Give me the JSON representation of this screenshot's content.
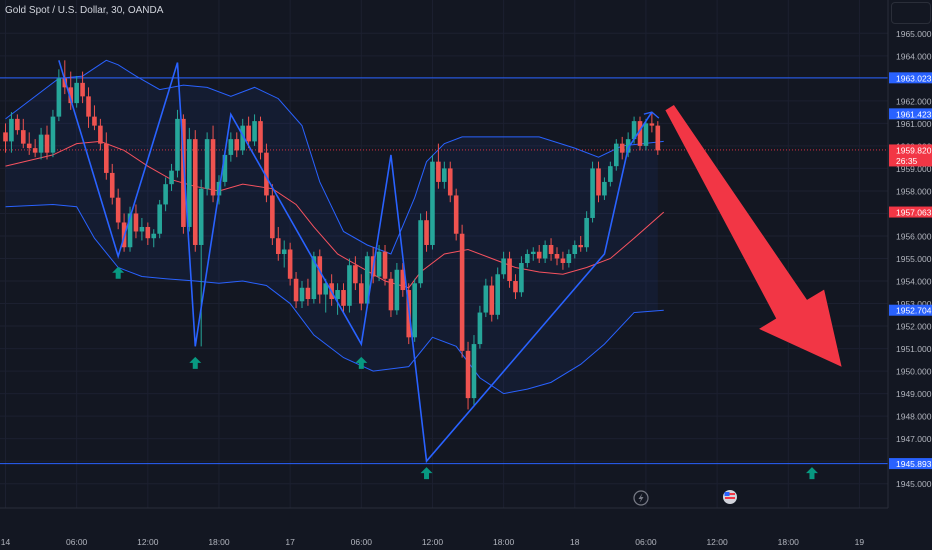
{
  "title": "Gold Spot / U.S. Dollar, 30, OANDA",
  "colors": {
    "background": "#131722",
    "bull": "#26a69a",
    "bear": "#ef5350",
    "band": "#2962ff",
    "ma": "#f7525f",
    "zigzag": "#2962ff",
    "level": "#2962ff",
    "signal": "#089981",
    "arrow": "#f23645"
  },
  "chart_data": {
    "type": "candlestick",
    "symbol": "Gold Spot / U.S. Dollar",
    "timeframe": "30",
    "source": "OANDA",
    "ylim": [
      1944.6,
      1965.6
    ],
    "y_ticks": [
      "1945.000",
      "1946.000",
      "1947.000",
      "1948.000",
      "1949.000",
      "1950.000",
      "1951.000",
      "1952.000",
      "1953.000",
      "1954.000",
      "1955.000",
      "1956.000",
      "1957.000",
      "1958.000",
      "1959.000",
      "1960.000",
      "1961.000",
      "1962.000",
      "1963.000",
      "1964.000",
      "1965.000"
    ],
    "x_ticks": [
      "14",
      "06:00",
      "12:00",
      "18:00",
      "17",
      "06:00",
      "12:00",
      "18:00",
      "18",
      "06:00",
      "12:00",
      "18:00",
      "19"
    ],
    "x_tick_bar_index": [
      0,
      12,
      24,
      36,
      48,
      60,
      72,
      84,
      96,
      108,
      120,
      132,
      144
    ],
    "price_labels": [
      {
        "text": "1963.023",
        "value": 1963.023,
        "color": "#2962ff"
      },
      {
        "text": "1961.423",
        "value": 1961.423,
        "color": "#2962ff"
      },
      {
        "text": "1959.820",
        "value": 1959.82,
        "sub": "26:35",
        "color": "#f23645"
      },
      {
        "text": "1957.063",
        "value": 1957.063,
        "color": "#f23645"
      },
      {
        "text": "1952.704",
        "value": 1952.704,
        "color": "#2962ff"
      },
      {
        "text": "1945.893",
        "value": 1945.893,
        "color": "#2962ff"
      }
    ],
    "horizontal_levels": [
      1963.023,
      1945.893
    ],
    "last_price_line": 1959.82,
    "candles": [
      [
        1960.6,
        1961.0,
        1959.7,
        1960.2
      ],
      [
        1960.2,
        1961.5,
        1959.7,
        1961.2
      ],
      [
        1961.2,
        1961.4,
        1960.5,
        1960.7
      ],
      [
        1960.7,
        1961.2,
        1959.9,
        1960.1
      ],
      [
        1960.1,
        1960.6,
        1959.6,
        1959.9
      ],
      [
        1959.9,
        1960.3,
        1959.5,
        1959.7
      ],
      [
        1959.7,
        1960.8,
        1959.4,
        1960.5
      ],
      [
        1960.5,
        1960.9,
        1959.4,
        1959.7
      ],
      [
        1959.7,
        1961.6,
        1959.5,
        1961.3
      ],
      [
        1961.3,
        1963.4,
        1961.1,
        1963.0
      ],
      [
        1963.0,
        1963.8,
        1962.3,
        1962.6
      ],
      [
        1962.6,
        1963.3,
        1961.6,
        1961.9
      ],
      [
        1961.9,
        1963.1,
        1961.7,
        1962.8
      ],
      [
        1962.8,
        1963.3,
        1961.9,
        1962.2
      ],
      [
        1962.2,
        1962.6,
        1960.8,
        1961.3
      ],
      [
        1961.3,
        1961.8,
        1960.7,
        1960.9
      ],
      [
        1960.9,
        1961.2,
        1959.8,
        1960.1
      ],
      [
        1960.1,
        1960.6,
        1958.5,
        1958.8
      ],
      [
        1958.8,
        1959.2,
        1957.4,
        1957.7
      ],
      [
        1957.7,
        1958.1,
        1956.3,
        1956.6
      ],
      [
        1956.6,
        1957.0,
        1955.3,
        1955.5
      ],
      [
        1955.5,
        1957.3,
        1955.3,
        1957.0
      ],
      [
        1957.0,
        1957.4,
        1955.9,
        1956.2
      ],
      [
        1956.2,
        1956.8,
        1955.8,
        1956.4
      ],
      [
        1956.4,
        1956.6,
        1955.6,
        1955.9
      ],
      [
        1955.9,
        1956.3,
        1955.5,
        1956.1
      ],
      [
        1956.1,
        1957.6,
        1955.9,
        1957.4
      ],
      [
        1957.4,
        1958.6,
        1957.1,
        1958.3
      ],
      [
        1958.3,
        1959.2,
        1958.0,
        1958.9
      ],
      [
        1958.9,
        1961.6,
        1958.6,
        1961.2
      ],
      [
        1961.2,
        1961.4,
        1956.1,
        1956.4
      ],
      [
        1956.4,
        1960.8,
        1956.2,
        1960.3
      ],
      [
        1960.3,
        1960.7,
        1955.3,
        1955.6
      ],
      [
        1955.6,
        1958.5,
        1951.1,
        1958.1
      ],
      [
        1958.1,
        1960.6,
        1957.8,
        1960.3
      ],
      [
        1960.3,
        1960.9,
        1957.5,
        1957.8
      ],
      [
        1957.8,
        1958.7,
        1957.4,
        1958.4
      ],
      [
        1958.4,
        1959.8,
        1958.2,
        1959.6
      ],
      [
        1959.6,
        1960.6,
        1959.3,
        1960.3
      ],
      [
        1960.3,
        1960.6,
        1959.5,
        1959.8
      ],
      [
        1959.8,
        1961.2,
        1959.6,
        1960.9
      ],
      [
        1960.9,
        1961.3,
        1959.9,
        1960.2
      ],
      [
        1960.2,
        1961.4,
        1960.0,
        1961.1
      ],
      [
        1961.1,
        1961.3,
        1959.4,
        1959.7
      ],
      [
        1959.7,
        1960.1,
        1957.5,
        1957.8
      ],
      [
        1957.8,
        1958.3,
        1955.6,
        1955.9
      ],
      [
        1955.9,
        1956.4,
        1954.9,
        1955.2
      ],
      [
        1955.2,
        1955.8,
        1954.6,
        1955.4
      ],
      [
        1955.4,
        1955.7,
        1953.8,
        1954.1
      ],
      [
        1954.1,
        1954.4,
        1952.8,
        1953.1
      ],
      [
        1953.1,
        1954.0,
        1952.8,
        1953.7
      ],
      [
        1953.7,
        1954.1,
        1952.9,
        1953.2
      ],
      [
        1953.2,
        1955.3,
        1953.0,
        1955.1
      ],
      [
        1955.1,
        1955.4,
        1953.0,
        1953.4
      ],
      [
        1953.4,
        1954.1,
        1952.6,
        1953.9
      ],
      [
        1953.9,
        1954.3,
        1952.9,
        1953.2
      ],
      [
        1953.2,
        1953.9,
        1952.5,
        1953.6
      ],
      [
        1953.6,
        1953.9,
        1952.6,
        1952.9
      ],
      [
        1952.9,
        1955.0,
        1952.6,
        1954.7
      ],
      [
        1954.7,
        1955.1,
        1953.6,
        1953.9
      ],
      [
        1953.9,
        1954.3,
        1952.7,
        1953.0
      ],
      [
        1953.0,
        1955.3,
        1952.8,
        1955.1
      ],
      [
        1955.1,
        1955.5,
        1953.9,
        1954.2
      ],
      [
        1954.2,
        1955.6,
        1954.0,
        1955.3
      ],
      [
        1955.3,
        1955.6,
        1953.8,
        1954.1
      ],
      [
        1954.1,
        1954.4,
        1952.4,
        1952.7
      ],
      [
        1952.7,
        1954.8,
        1952.5,
        1954.5
      ],
      [
        1954.5,
        1954.8,
        1953.3,
        1953.6
      ],
      [
        1953.6,
        1953.9,
        1951.2,
        1951.5
      ],
      [
        1951.5,
        1954.1,
        1951.3,
        1953.9
      ],
      [
        1953.9,
        1957.0,
        1953.7,
        1956.7
      ],
      [
        1956.7,
        1957.1,
        1955.3,
        1955.6
      ],
      [
        1955.6,
        1959.6,
        1955.4,
        1959.3
      ],
      [
        1959.3,
        1960.1,
        1958.1,
        1958.4
      ],
      [
        1958.4,
        1959.3,
        1958.1,
        1959.0
      ],
      [
        1959.0,
        1959.3,
        1957.5,
        1957.8
      ],
      [
        1957.8,
        1958.1,
        1955.8,
        1956.1
      ],
      [
        1956.1,
        1956.5,
        1950.6,
        1950.9
      ],
      [
        1950.9,
        1951.3,
        1948.3,
        1948.8
      ],
      [
        1948.8,
        1951.6,
        1948.5,
        1951.2
      ],
      [
        1951.2,
        1952.9,
        1951.0,
        1952.6
      ],
      [
        1952.6,
        1954.1,
        1952.4,
        1953.8
      ],
      [
        1953.8,
        1954.2,
        1952.2,
        1952.5
      ],
      [
        1952.5,
        1954.6,
        1952.3,
        1954.3
      ],
      [
        1954.3,
        1955.3,
        1954.1,
        1955.0
      ],
      [
        1955.0,
        1955.3,
        1953.7,
        1954.0
      ],
      [
        1954.0,
        1954.3,
        1953.2,
        1953.5
      ],
      [
        1953.5,
        1955.1,
        1953.3,
        1954.8
      ],
      [
        1954.8,
        1955.4,
        1954.6,
        1955.2
      ],
      [
        1955.2,
        1955.5,
        1954.9,
        1955.3
      ],
      [
        1955.3,
        1955.6,
        1954.8,
        1955.0
      ],
      [
        1955.0,
        1955.8,
        1954.8,
        1955.6
      ],
      [
        1955.6,
        1955.9,
        1954.9,
        1955.2
      ],
      [
        1955.2,
        1955.5,
        1954.7,
        1955.0
      ],
      [
        1955.0,
        1955.3,
        1954.5,
        1954.8
      ],
      [
        1954.8,
        1955.4,
        1954.6,
        1955.2
      ],
      [
        1955.2,
        1955.8,
        1955.0,
        1955.6
      ],
      [
        1955.6,
        1956.0,
        1955.3,
        1955.5
      ],
      [
        1955.5,
        1957.1,
        1955.3,
        1956.8
      ],
      [
        1956.8,
        1959.3,
        1956.6,
        1959.0
      ],
      [
        1959.0,
        1959.3,
        1957.5,
        1957.8
      ],
      [
        1957.8,
        1958.6,
        1957.6,
        1958.4
      ],
      [
        1958.4,
        1959.3,
        1958.2,
        1959.1
      ],
      [
        1959.1,
        1960.3,
        1958.9,
        1960.1
      ],
      [
        1960.1,
        1960.4,
        1959.4,
        1959.7
      ],
      [
        1959.7,
        1960.6,
        1959.5,
        1960.3
      ],
      [
        1960.3,
        1961.3,
        1960.1,
        1961.1
      ],
      [
        1961.1,
        1961.3,
        1959.8,
        1960.0
      ],
      [
        1960.0,
        1961.2,
        1959.8,
        1961.0
      ],
      [
        1961.0,
        1961.5,
        1960.6,
        1960.9
      ],
      [
        1960.9,
        1961.1,
        1959.6,
        1959.8
      ]
    ],
    "bollinger": {
      "upper": [
        [
          0,
          1961.2
        ],
        [
          9,
          1963.0
        ],
        [
          13,
          1963.1
        ],
        [
          17,
          1963.8
        ],
        [
          19,
          1963.6
        ],
        [
          22,
          1963.1
        ],
        [
          26,
          1962.5
        ],
        [
          30,
          1962.7
        ],
        [
          34,
          1962.6
        ],
        [
          38,
          1962.2
        ],
        [
          42,
          1962.6
        ],
        [
          46,
          1962.1
        ],
        [
          50,
          1960.9
        ],
        [
          53,
          1958.4
        ],
        [
          57,
          1956.2
        ],
        [
          61,
          1955.6
        ],
        [
          65,
          1955.2
        ],
        [
          69,
          1957.7
        ],
        [
          71,
          1959.3
        ],
        [
          74,
          1960.1
        ],
        [
          77,
          1960.4
        ],
        [
          82,
          1960.4
        ],
        [
          90,
          1960.4
        ],
        [
          96,
          1959.9
        ],
        [
          100,
          1959.5
        ],
        [
          104,
          1960.0
        ],
        [
          111,
          1960.2
        ]
      ],
      "lower": [
        [
          0,
          1957.3
        ],
        [
          8,
          1957.4
        ],
        [
          12,
          1957.3
        ],
        [
          15,
          1955.9
        ],
        [
          19,
          1954.6
        ],
        [
          23,
          1954.2
        ],
        [
          27,
          1954.1
        ],
        [
          32,
          1954.0
        ],
        [
          36,
          1953.9
        ],
        [
          40,
          1954.0
        ],
        [
          44,
          1953.8
        ],
        [
          48,
          1953.0
        ],
        [
          52,
          1951.6
        ],
        [
          57,
          1950.6
        ],
        [
          62,
          1950.0
        ],
        [
          68,
          1950.2
        ],
        [
          72,
          1951.5
        ],
        [
          76,
          1951.1
        ],
        [
          80,
          1949.7
        ],
        [
          84,
          1949.0
        ],
        [
          88,
          1949.2
        ],
        [
          92,
          1949.5
        ],
        [
          97,
          1950.3
        ],
        [
          101,
          1951.2
        ],
        [
          106,
          1952.6
        ],
        [
          111,
          1952.7
        ]
      ],
      "middle_ma": [
        [
          0,
          1959.1
        ],
        [
          8,
          1959.6
        ],
        [
          12,
          1960.1
        ],
        [
          16,
          1960.2
        ],
        [
          20,
          1959.8
        ],
        [
          24,
          1959.1
        ],
        [
          28,
          1958.5
        ],
        [
          32,
          1958.2
        ],
        [
          36,
          1958.0
        ],
        [
          40,
          1958.3
        ],
        [
          45,
          1958.1
        ],
        [
          49,
          1957.4
        ],
        [
          52,
          1956.4
        ],
        [
          56,
          1955.2
        ],
        [
          60,
          1954.6
        ],
        [
          64,
          1954.0
        ],
        [
          68,
          1953.7
        ],
        [
          70,
          1954.4
        ],
        [
          74,
          1955.2
        ],
        [
          78,
          1955.4
        ],
        [
          82,
          1955.0
        ],
        [
          86,
          1954.6
        ],
        [
          90,
          1954.4
        ],
        [
          94,
          1954.3
        ],
        [
          98,
          1954.6
        ],
        [
          102,
          1955.0
        ],
        [
          106,
          1955.9
        ],
        [
          111,
          1957.06
        ]
      ]
    },
    "zigzag": [
      [
        9,
        1963.8
      ],
      [
        19,
        1955.1
      ],
      [
        29,
        1963.7
      ],
      [
        32,
        1951.1
      ],
      [
        38,
        1961.4
      ],
      [
        60,
        1951.2
      ],
      [
        65,
        1959.6
      ],
      [
        71,
        1946.0
      ],
      [
        101,
        1955.2
      ],
      [
        105,
        1959.9
      ],
      [
        109,
        1961.5
      ]
    ],
    "buy_signals": [
      [
        19,
        1954.9
      ],
      [
        32,
        1950.9
      ],
      [
        60,
        1950.9
      ],
      [
        71,
        1946.0
      ],
      [
        136,
        1946.0
      ]
    ],
    "forecast_arrow": {
      "direction": "down",
      "from_bar": 112,
      "from_price": 1961.7,
      "to_bar": 141,
      "to_price": 1950.1
    },
    "footer_icons": [
      "lightning-icon",
      "flag-icon"
    ]
  }
}
